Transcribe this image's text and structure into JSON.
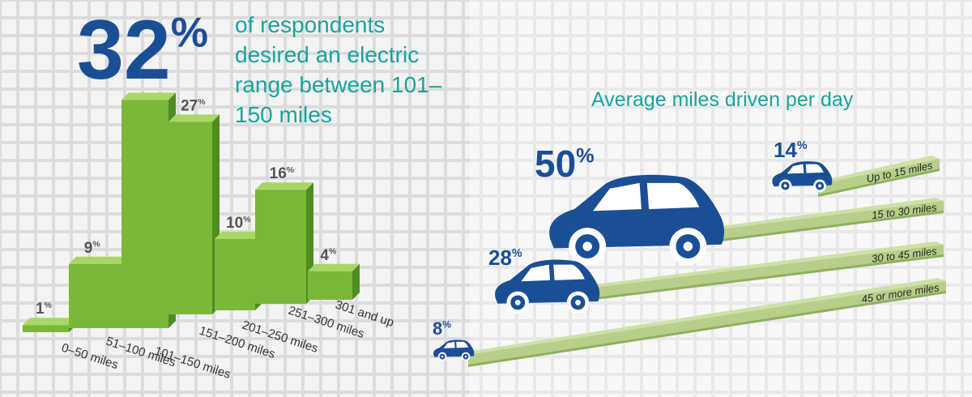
{
  "chart_data": [
    {
      "type": "bar",
      "annotation": "of respondents desired an electric range between 101–150 miles",
      "categories": [
        "0–50 miles",
        "51–100 miles",
        "101–150 miles",
        "151–200 miles",
        "201–250 miles",
        "251–300 miles",
        "301 and up"
      ],
      "values": [
        1,
        9,
        32,
        27,
        10,
        16,
        4
      ],
      "value_labels": [
        "1%",
        "9%",
        "32%",
        "27%",
        "10%",
        "16%",
        "4%"
      ],
      "color": "#7ab83a"
    },
    {
      "type": "pictograph",
      "title": "Average miles driven per day",
      "categories": [
        "Up to 15 miles",
        "15 to 30 miles",
        "30 to 45 miles",
        "45 or more miles"
      ],
      "values": [
        14,
        50,
        28,
        8
      ],
      "value_labels": [
        "14%",
        "50%",
        "28%",
        "8%"
      ],
      "color": "#1b4f95"
    }
  ]
}
